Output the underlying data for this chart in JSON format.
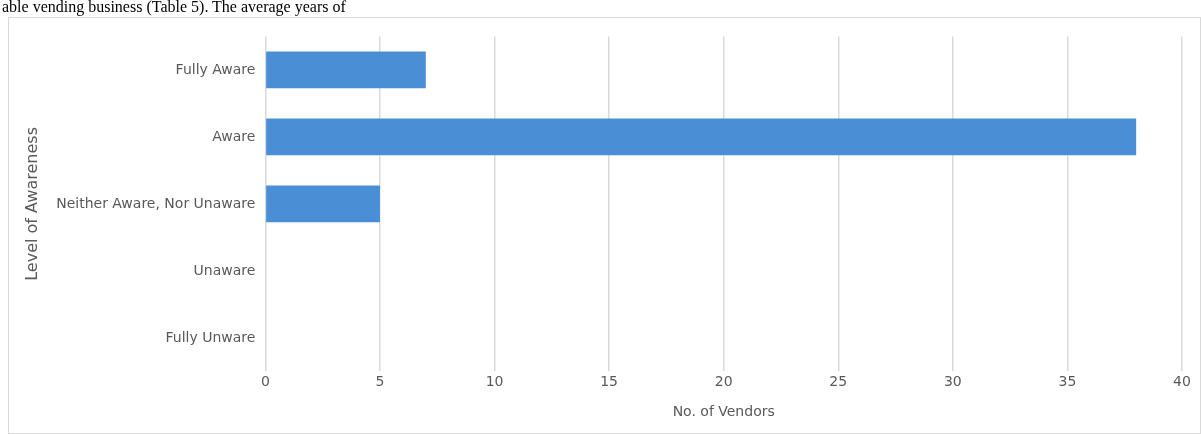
{
  "chart_data": {
    "type": "bar",
    "orientation": "horizontal",
    "xlabel": "No. of Vendors",
    "ylabel": "Level of Awareness",
    "annotations": [
      "able vending business (Table 5). The average years of"
    ],
    "categories": [
      "Fully Aware",
      "Aware",
      "Neither Aware, Nor Unaware",
      "Unaware",
      "Fully Unware"
    ],
    "values": [
      7,
      38,
      5,
      0,
      0
    ],
    "color": "#4a8fd6",
    "xlim": [
      0,
      40
    ],
    "xticks": [
      0,
      5,
      10,
      15,
      20,
      25,
      30,
      35,
      40
    ],
    "grid": "x",
    "legend": false
  }
}
